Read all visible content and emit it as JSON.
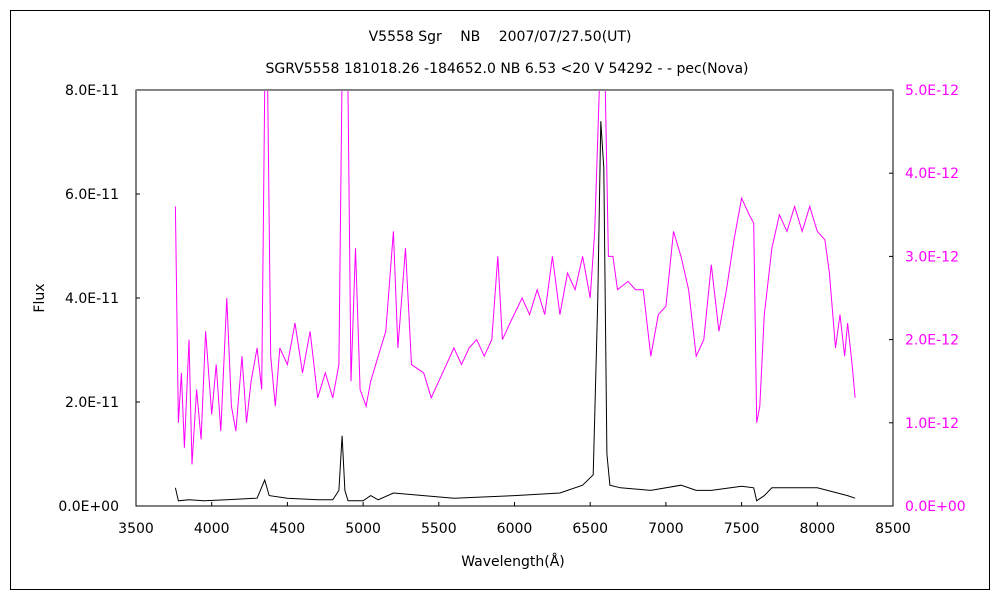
{
  "chart_data": {
    "type": "line",
    "title": "V5558 Sgr　 NB　 2007/07/27.50(UT)",
    "subtitle": "SGRV5558 181018.26 -184652.0 NB 6.53 <20 V 54292 - - pec(Nova)",
    "xlabel": "Wavelength(Å)",
    "ylabel": "Flux",
    "xlim": [
      3500,
      8500
    ],
    "ylim_left": [
      0,
      8e-11
    ],
    "ylim_right": [
      0,
      5e-12
    ],
    "x_ticks": [
      "3500",
      "4000",
      "4500",
      "5000",
      "5500",
      "6000",
      "6500",
      "7000",
      "7500",
      "8000",
      "8500"
    ],
    "y_ticks_left": [
      "0.0E+00",
      "2.0E-11",
      "4.0E-11",
      "6.0E-11",
      "8.0E-11"
    ],
    "y_ticks_right": [
      "0.0E+00",
      "1.0E-12",
      "2.0E-12",
      "3.0E-12",
      "4.0E-12",
      "5.0E-12"
    ],
    "grid": false,
    "colors": {
      "left_series": "#000000",
      "right_series": "#ff00ff",
      "right_axis": "#ff00ff"
    },
    "series": [
      {
        "axis": "left",
        "color": "#000000",
        "points": [
          [
            3760,
            3.5e-12
          ],
          [
            3780,
            1e-12
          ],
          [
            3850,
            1.2e-12
          ],
          [
            3950,
            1e-12
          ],
          [
            4100,
            1.2e-12
          ],
          [
            4300,
            1.5e-12
          ],
          [
            4350,
            5e-12
          ],
          [
            4380,
            2e-12
          ],
          [
            4500,
            1.5e-12
          ],
          [
            4700,
            1.2e-12
          ],
          [
            4800,
            1.2e-12
          ],
          [
            4840,
            3e-12
          ],
          [
            4861,
            1.35e-11
          ],
          [
            4880,
            3e-12
          ],
          [
            4900,
            1e-12
          ],
          [
            5000,
            1e-12
          ],
          [
            5050,
            2e-12
          ],
          [
            5100,
            1.2e-12
          ],
          [
            5200,
            2.5e-12
          ],
          [
            5400,
            2e-12
          ],
          [
            5600,
            1.5e-12
          ],
          [
            6000,
            2e-12
          ],
          [
            6300,
            2.5e-12
          ],
          [
            6450,
            4e-12
          ],
          [
            6520,
            6e-12
          ],
          [
            6550,
            4e-11
          ],
          [
            6570,
            7.4e-11
          ],
          [
            6590,
            6.5e-11
          ],
          [
            6610,
            1e-11
          ],
          [
            6630,
            4e-12
          ],
          [
            6700,
            3.5e-12
          ],
          [
            6900,
            3e-12
          ],
          [
            7100,
            4e-12
          ],
          [
            7200,
            3e-12
          ],
          [
            7300,
            3e-12
          ],
          [
            7500,
            3.8e-12
          ],
          [
            7580,
            3.5e-12
          ],
          [
            7600,
            1e-12
          ],
          [
            7650,
            2e-12
          ],
          [
            7700,
            3.5e-12
          ],
          [
            8000,
            3.5e-12
          ],
          [
            8200,
            2e-12
          ],
          [
            8250,
            1.5e-12
          ]
        ]
      },
      {
        "axis": "right",
        "color": "#ff00ff",
        "points": [
          [
            3760,
            3.6e-12
          ],
          [
            3780,
            1e-12
          ],
          [
            3800,
            1.6e-12
          ],
          [
            3820,
            7e-13
          ],
          [
            3850,
            2e-12
          ],
          [
            3870,
            5e-13
          ],
          [
            3900,
            1.4e-12
          ],
          [
            3930,
            8e-13
          ],
          [
            3960,
            2.1e-12
          ],
          [
            4000,
            1.1e-12
          ],
          [
            4030,
            1.7e-12
          ],
          [
            4060,
            9e-13
          ],
          [
            4100,
            2.5e-12
          ],
          [
            4130,
            1.2e-12
          ],
          [
            4160,
            9e-13
          ],
          [
            4200,
            1.8e-12
          ],
          [
            4230,
            1e-12
          ],
          [
            4260,
            1.5e-12
          ],
          [
            4300,
            1.9e-12
          ],
          [
            4330,
            1.4e-12
          ],
          [
            4350,
            5e-12
          ],
          [
            4370,
            5e-12
          ],
          [
            4390,
            1.8e-12
          ],
          [
            4420,
            1.2e-12
          ],
          [
            4450,
            1.9e-12
          ],
          [
            4500,
            1.7e-12
          ],
          [
            4550,
            2.2e-12
          ],
          [
            4600,
            1.6e-12
          ],
          [
            4650,
            2.1e-12
          ],
          [
            4700,
            1.3e-12
          ],
          [
            4750,
            1.6e-12
          ],
          [
            4800,
            1.3e-12
          ],
          [
            4840,
            1.7e-12
          ],
          [
            4860,
            5e-12
          ],
          [
            4900,
            5e-12
          ],
          [
            4920,
            1.5e-12
          ],
          [
            4950,
            3.1e-12
          ],
          [
            4980,
            1.4e-12
          ],
          [
            5020,
            1.2e-12
          ],
          [
            5050,
            1.5e-12
          ],
          [
            5100,
            1.8e-12
          ],
          [
            5150,
            2.1e-12
          ],
          [
            5200,
            3.3e-12
          ],
          [
            5230,
            1.9e-12
          ],
          [
            5280,
            3.1e-12
          ],
          [
            5320,
            1.7e-12
          ],
          [
            5400,
            1.6e-12
          ],
          [
            5450,
            1.3e-12
          ],
          [
            5500,
            1.5e-12
          ],
          [
            5550,
            1.7e-12
          ],
          [
            5600,
            1.9e-12
          ],
          [
            5650,
            1.7e-12
          ],
          [
            5700,
            1.9e-12
          ],
          [
            5750,
            2e-12
          ],
          [
            5800,
            1.8e-12
          ],
          [
            5850,
            2e-12
          ],
          [
            5890,
            3e-12
          ],
          [
            5920,
            2e-12
          ],
          [
            5970,
            2.2e-12
          ],
          [
            6050,
            2.5e-12
          ],
          [
            6100,
            2.3e-12
          ],
          [
            6150,
            2.6e-12
          ],
          [
            6200,
            2.3e-12
          ],
          [
            6250,
            3e-12
          ],
          [
            6300,
            2.3e-12
          ],
          [
            6350,
            2.8e-12
          ],
          [
            6400,
            2.6e-12
          ],
          [
            6450,
            3e-12
          ],
          [
            6500,
            2.5e-12
          ],
          [
            6530,
            3.3e-12
          ],
          [
            6560,
            5e-12
          ],
          [
            6600,
            5e-12
          ],
          [
            6620,
            3e-12
          ],
          [
            6650,
            3e-12
          ],
          [
            6680,
            2.6e-12
          ],
          [
            6750,
            2.7e-12
          ],
          [
            6800,
            2.6e-12
          ],
          [
            6850,
            2.6e-12
          ],
          [
            6900,
            1.8e-12
          ],
          [
            6950,
            2.3e-12
          ],
          [
            7000,
            2.4e-12
          ],
          [
            7050,
            3.3e-12
          ],
          [
            7100,
            3e-12
          ],
          [
            7150,
            2.6e-12
          ],
          [
            7200,
            1.8e-12
          ],
          [
            7250,
            2e-12
          ],
          [
            7300,
            2.9e-12
          ],
          [
            7350,
            2.1e-12
          ],
          [
            7400,
            2.6e-12
          ],
          [
            7450,
            3.2e-12
          ],
          [
            7500,
            3.7e-12
          ],
          [
            7550,
            3.5e-12
          ],
          [
            7580,
            3.4e-12
          ],
          [
            7600,
            1e-12
          ],
          [
            7620,
            1.2e-12
          ],
          [
            7650,
            2.3e-12
          ],
          [
            7700,
            3.1e-12
          ],
          [
            7750,
            3.5e-12
          ],
          [
            7800,
            3.3e-12
          ],
          [
            7850,
            3.6e-12
          ],
          [
            7900,
            3.3e-12
          ],
          [
            7950,
            3.6e-12
          ],
          [
            8000,
            3.3e-12
          ],
          [
            8050,
            3.2e-12
          ],
          [
            8080,
            2.8e-12
          ],
          [
            8120,
            1.9e-12
          ],
          [
            8150,
            2.3e-12
          ],
          [
            8180,
            1.8e-12
          ],
          [
            8200,
            2.2e-12
          ],
          [
            8230,
            1.7e-12
          ],
          [
            8250,
            1.3e-12
          ]
        ]
      }
    ]
  }
}
